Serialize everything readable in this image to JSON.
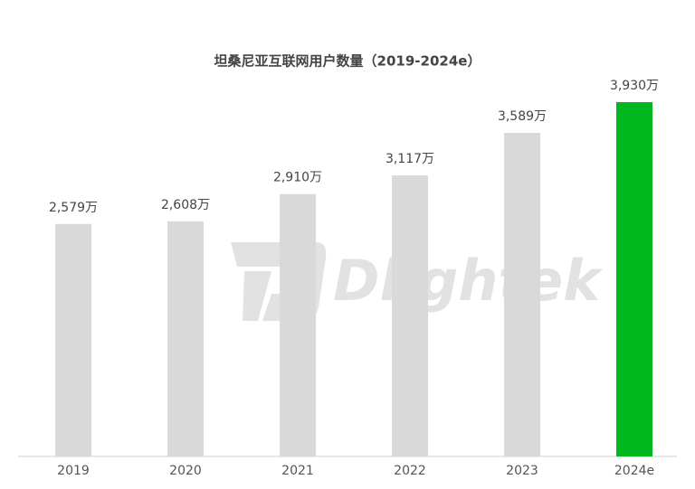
{
  "chart_data": {
    "type": "bar",
    "title": "坦桑尼亚互联网用户数量（2019-2024e）",
    "watermark": "Dlightek",
    "categories": [
      "2019",
      "2020",
      "2021",
      "2022",
      "2023",
      "2024e"
    ],
    "values": [
      2579,
      2608,
      2910,
      3117,
      3589,
      3930
    ],
    "value_labels": [
      "2,579万",
      "2,608万",
      "2,910万",
      "3,117万",
      "3,589万",
      "3,930万"
    ],
    "colors": [
      "#d9d9d9",
      "#d9d9d9",
      "#d9d9d9",
      "#d9d9d9",
      "#d9d9d9",
      "#00b81e"
    ]
  }
}
